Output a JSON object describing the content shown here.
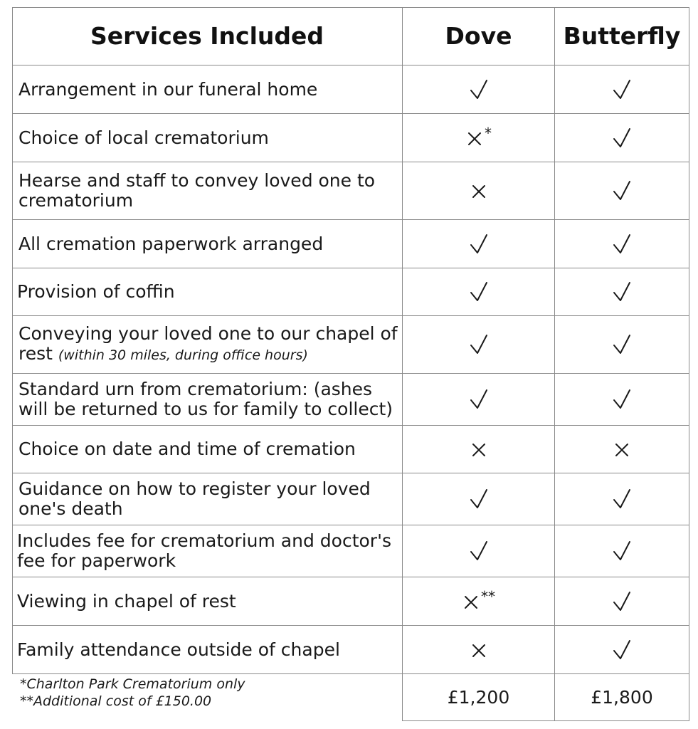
{
  "table": {
    "headers": [
      "Services Included",
      "Dove",
      "Butterfly"
    ],
    "rows": [
      {
        "service": "Arrangement in our funeral home",
        "dove": "tick",
        "dove_note": "",
        "butterfly": "tick"
      },
      {
        "service": "Choice of local crematorium",
        "dove": "cross",
        "dove_note": "*",
        "butterfly": "tick"
      },
      {
        "service": "Hearse and staff to convey loved one to crematorium",
        "dove": "cross",
        "dove_note": "",
        "butterfly": "tick"
      },
      {
        "service": "All cremation paperwork arranged",
        "dove": "tick",
        "dove_note": "",
        "butterfly": "tick"
      },
      {
        "service": "Provision of coffin",
        "dove": "tick",
        "dove_note": "",
        "butterfly": "tick"
      },
      {
        "service": "Conveying your loved one to our chapel of rest",
        "service_note": "(within 30 miles, during office hours)",
        "dove": "tick",
        "dove_note": "",
        "butterfly": "tick"
      },
      {
        "service": "Standard urn from crematorium: (ashes will be returned to us for family to collect)",
        "dove": "tick",
        "dove_note": "",
        "butterfly": "tick"
      },
      {
        "service": "Choice on date and time of cremation",
        "dove": "cross",
        "dove_note": "",
        "butterfly": "cross"
      },
      {
        "service": "Guidance on how to register your loved one's death",
        "dove": "tick",
        "dove_note": "",
        "butterfly": "tick"
      },
      {
        "service": "Includes fee for crematorium and doctor's fee for paperwork",
        "dove": "tick",
        "dove_note": "",
        "butterfly": "tick"
      },
      {
        "service": "Viewing in chapel of rest",
        "dove": "cross",
        "dove_note": "**",
        "butterfly": "tick"
      },
      {
        "service": "Family attendance outside of chapel",
        "dove": "cross",
        "dove_note": "",
        "butterfly": "tick"
      }
    ],
    "footnotes": [
      "*Charlton Park Crematorium only",
      "**Additional cost of £150.00"
    ],
    "prices": {
      "dove": "£1,200",
      "butterfly": "£1,800"
    }
  },
  "colors": {
    "grid": "#8a8a8a",
    "text": "#1a1a1a"
  },
  "icons": {
    "tick": "check-icon",
    "cross": "cross-icon"
  }
}
